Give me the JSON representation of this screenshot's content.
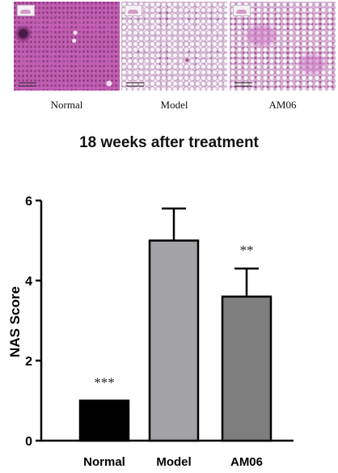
{
  "panels": [
    {
      "label": "Normal"
    },
    {
      "label": "Model"
    },
    {
      "label": "AM06"
    }
  ],
  "chart_data": {
    "type": "bar",
    "title": "18 weeks after treatment",
    "xlabel": "",
    "ylabel": "NAS Score",
    "categories": [
      "Normal",
      "Model",
      "AM06"
    ],
    "values": [
      1.0,
      5.0,
      3.6
    ],
    "error_upper": [
      0,
      0.8,
      0.7
    ],
    "significance": [
      "***",
      "",
      "**"
    ],
    "bar_colors": [
      "#000000",
      "#a3a3a7",
      "#7e7e7e"
    ],
    "ylim": [
      0,
      6
    ],
    "yticks": [
      0,
      2,
      4,
      6
    ],
    "grid": false,
    "legend": "none"
  }
}
